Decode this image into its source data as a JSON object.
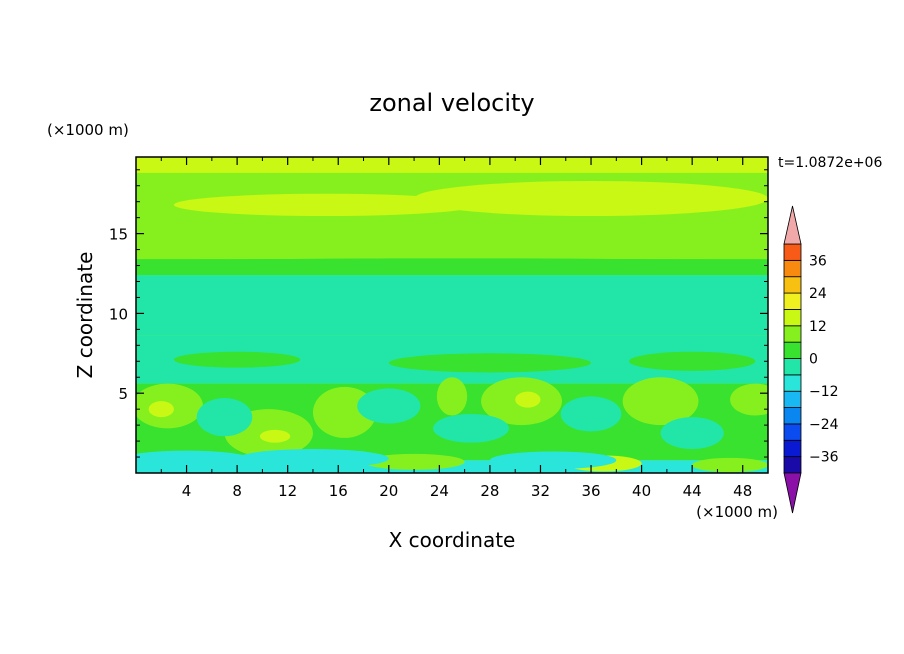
{
  "chart_data": {
    "type": "heatmap",
    "title": "zonal velocity",
    "xlabel": "X coordinate",
    "ylabel": "Z coordinate",
    "x_unit": "(×1000 m)",
    "y_unit": "(×1000 m)",
    "time_label": "t=1.0872e+06",
    "xlim": [
      0,
      50
    ],
    "ylim": [
      0,
      19.8
    ],
    "x_ticks": [
      4,
      8,
      12,
      16,
      20,
      24,
      28,
      32,
      36,
      40,
      44,
      48
    ],
    "y_ticks": [
      5,
      10,
      15
    ],
    "colorbar": {
      "tick_values": [
        36,
        24,
        12,
        0,
        -12,
        -24,
        -36
      ],
      "levels": [
        -42,
        -36,
        -30,
        -24,
        -18,
        -12,
        -6,
        0,
        6,
        12,
        18,
        24,
        30,
        36,
        42
      ],
      "colors": [
        "#4a0a8e",
        "#1a0aa8",
        "#0a1ad2",
        "#0a4cf0",
        "#0a86f0",
        "#19b8f2",
        "#2ae6da",
        "#22e6a8",
        "#38e22e",
        "#86f01e",
        "#c8f814",
        "#f0f020",
        "#f8c010",
        "#f88a10",
        "#f85a18",
        "#e82818"
      ],
      "over_color": "#f0a8a8",
      "under_color": "#8a10a8",
      "extend": "both"
    },
    "bands": [
      {
        "y": [
          18.8,
          19.8
        ],
        "value": 14
      },
      {
        "y": [
          13.4,
          18.8
        ],
        "value": 8
      },
      {
        "y": [
          12.4,
          13.4
        ],
        "value": 3
      },
      {
        "y": [
          8.6,
          12.4
        ],
        "value": -3
      },
      {
        "y": [
          5.6,
          8.6
        ],
        "value": -3
      },
      {
        "y": [
          0.8,
          5.6
        ],
        "value": 2
      },
      {
        "y": [
          0,
          0.8
        ],
        "value": -8
      }
    ],
    "features": [
      {
        "x": 15,
        "y": 16.8,
        "rx": 12,
        "ry": 0.7,
        "value": 13
      },
      {
        "x": 36,
        "y": 17.2,
        "rx": 14,
        "ry": 1.1,
        "value": 13
      },
      {
        "x": 5,
        "y": 19.3,
        "rx": 5,
        "ry": 0.4,
        "value": 15
      },
      {
        "x": 25,
        "y": 13.2,
        "rx": 25,
        "ry": 0.25,
        "value": 2
      },
      {
        "x": 8,
        "y": 7.1,
        "rx": 5,
        "ry": 0.5,
        "value": 2
      },
      {
        "x": 28,
        "y": 6.9,
        "rx": 8,
        "ry": 0.6,
        "value": 2
      },
      {
        "x": 44,
        "y": 7.0,
        "rx": 5,
        "ry": 0.6,
        "value": 2
      },
      {
        "x": 2.5,
        "y": 4.2,
        "rx": 2.8,
        "ry": 1.4,
        "value": 6
      },
      {
        "x": 2,
        "y": 4.0,
        "rx": 1.0,
        "ry": 0.5,
        "value": 12
      },
      {
        "x": 10.5,
        "y": 2.5,
        "rx": 3.5,
        "ry": 1.5,
        "value": 6
      },
      {
        "x": 11,
        "y": 2.3,
        "rx": 1.2,
        "ry": 0.4,
        "value": 12
      },
      {
        "x": 16.5,
        "y": 3.8,
        "rx": 2.5,
        "ry": 1.6,
        "value": 7
      },
      {
        "x": 30.5,
        "y": 4.5,
        "rx": 3.2,
        "ry": 1.5,
        "value": 8
      },
      {
        "x": 31,
        "y": 4.6,
        "rx": 1.0,
        "ry": 0.5,
        "value": 13
      },
      {
        "x": 41.5,
        "y": 4.5,
        "rx": 3.0,
        "ry": 1.5,
        "value": 7
      },
      {
        "x": 49,
        "y": 4.6,
        "rx": 2.0,
        "ry": 1.0,
        "value": 7
      },
      {
        "x": 25,
        "y": 4.8,
        "rx": 1.2,
        "ry": 1.2,
        "value": 7
      },
      {
        "x": 37,
        "y": 0.6,
        "rx": 3,
        "ry": 0.5,
        "value": 12
      },
      {
        "x": 47,
        "y": 0.5,
        "rx": 3,
        "ry": 0.45,
        "value": 10
      },
      {
        "x": 22,
        "y": 0.7,
        "rx": 4,
        "ry": 0.5,
        "value": 6
      },
      {
        "x": 7,
        "y": 3.5,
        "rx": 2.2,
        "ry": 1.2,
        "value": -6
      },
      {
        "x": 20,
        "y": 4.2,
        "rx": 2.5,
        "ry": 1.1,
        "value": -6
      },
      {
        "x": 36,
        "y": 3.7,
        "rx": 2.4,
        "ry": 1.1,
        "value": -6
      },
      {
        "x": 26.5,
        "y": 2.8,
        "rx": 3,
        "ry": 0.9,
        "value": -6
      },
      {
        "x": 44,
        "y": 2.5,
        "rx": 2.5,
        "ry": 1.0,
        "value": -6
      },
      {
        "x": 4,
        "y": 0.9,
        "rx": 5,
        "ry": 0.5,
        "value": -8
      },
      {
        "x": 14,
        "y": 0.9,
        "rx": 6,
        "ry": 0.6,
        "value": -8
      },
      {
        "x": 33,
        "y": 0.8,
        "rx": 5,
        "ry": 0.55,
        "value": -8
      },
      {
        "x": 6,
        "y": 11.4,
        "rx": 6,
        "ry": 0.7,
        "value": -6
      }
    ]
  }
}
